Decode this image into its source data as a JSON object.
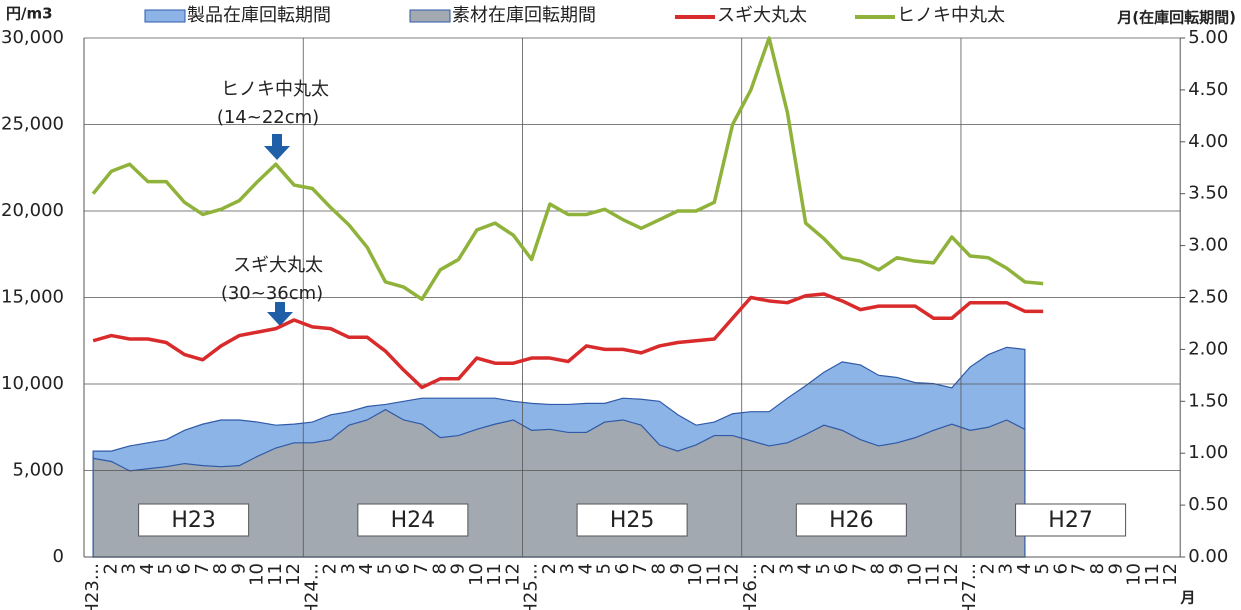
{
  "chart_data": {
    "type": "line",
    "y_label": "円/m3",
    "y2_label": "月(在庫回転期間)",
    "x_label": "月",
    "categories": [
      "H23...",
      "2",
      "3",
      "4",
      "5",
      "6",
      "7",
      "8",
      "9",
      "10",
      "11",
      "12",
      "H24...",
      "2",
      "3",
      "4",
      "5",
      "6",
      "7",
      "8",
      "9",
      "10",
      "11",
      "12",
      "H25...",
      "2",
      "3",
      "4",
      "5",
      "6",
      "7",
      "8",
      "9",
      "10",
      "11",
      "12",
      "H26...",
      "2",
      "3",
      "4",
      "5",
      "6",
      "7",
      "8",
      "9",
      "10",
      "11",
      "12",
      "H27...",
      "2",
      "3",
      "4",
      "5",
      "6",
      "7",
      "8",
      "9",
      "10",
      "11",
      "12"
    ],
    "series": [
      {
        "name": "製品在庫回転期間",
        "type": "area",
        "axis": "y2",
        "color": "#8db4e6",
        "values": [
          1.02,
          1.02,
          1.07,
          1.1,
          1.13,
          1.22,
          1.28,
          1.32,
          1.32,
          1.3,
          1.27,
          1.28,
          1.3,
          1.37,
          1.4,
          1.45,
          1.47,
          1.5,
          1.53,
          1.53,
          1.53,
          1.53,
          1.53,
          1.5,
          1.48,
          1.47,
          1.47,
          1.48,
          1.48,
          1.53,
          1.52,
          1.5,
          1.37,
          1.27,
          1.3,
          1.38,
          1.4,
          1.4,
          1.53,
          1.65,
          1.78,
          1.88,
          1.85,
          1.75,
          1.73,
          1.68,
          1.67,
          1.63,
          1.83,
          1.95,
          2.02,
          2.0,
          null,
          null,
          null,
          null,
          null,
          null,
          null,
          null
        ]
      },
      {
        "name": "素材在庫回転期間",
        "type": "area",
        "axis": "y2",
        "color": "#a2a9b1",
        "values": [
          0.95,
          0.92,
          0.83,
          0.85,
          0.87,
          0.9,
          0.88,
          0.87,
          0.88,
          0.97,
          1.05,
          1.1,
          1.1,
          1.13,
          1.27,
          1.32,
          1.42,
          1.32,
          1.28,
          1.15,
          1.17,
          1.23,
          1.28,
          1.32,
          1.22,
          1.23,
          1.2,
          1.2,
          1.3,
          1.32,
          1.27,
          1.08,
          1.02,
          1.08,
          1.17,
          1.17,
          1.12,
          1.07,
          1.1,
          1.18,
          1.27,
          1.22,
          1.13,
          1.07,
          1.1,
          1.15,
          1.22,
          1.28,
          1.22,
          1.25,
          1.32,
          1.23,
          null,
          null,
          null,
          null,
          null,
          null,
          null,
          null
        ]
      },
      {
        "name": "スギ大丸太",
        "type": "line",
        "color": "#d92b2b",
        "values": [
          12500,
          12800,
          12600,
          12600,
          12400,
          11700,
          11400,
          12200,
          12800,
          13000,
          13200,
          13700,
          13300,
          13200,
          12700,
          12700,
          11900,
          10800,
          9800,
          10300,
          10300,
          11500,
          11200,
          11200,
          11500,
          11500,
          11300,
          12200,
          12000,
          12000,
          11800,
          12200,
          12400,
          12500,
          12600,
          13800,
          15000,
          14800,
          14700,
          15100,
          15200,
          14800,
          14300,
          14500,
          14500,
          14500,
          13800,
          13800,
          14700,
          14700,
          14700,
          14200,
          14200,
          null,
          null,
          null,
          null,
          null,
          null,
          null
        ]
      },
      {
        "name": "ヒノキ中丸太",
        "type": "line",
        "color": "#8fb33a",
        "values": [
          21000,
          22300,
          22700,
          21700,
          21700,
          20500,
          19800,
          20100,
          20600,
          21700,
          22700,
          21500,
          21300,
          20200,
          19200,
          17900,
          15900,
          15600,
          14900,
          16600,
          17200,
          18900,
          19300,
          18600,
          17200,
          20400,
          19800,
          19800,
          20100,
          19500,
          19000,
          19500,
          20000,
          20000,
          20500,
          25000,
          27000,
          30000,
          25700,
          19300,
          18400,
          17300,
          17100,
          16600,
          17300,
          17100,
          17000,
          18500,
          17400,
          17300,
          16700,
          15900,
          15800,
          null,
          null,
          null,
          null,
          null,
          null,
          null
        ]
      }
    ],
    "ylim": [
      0,
      30000
    ],
    "yticks": [
      0,
      {
        "value": 5000,
        "label": "5,000"
      },
      {
        "value": 10000,
        "label": "10,000"
      },
      {
        "value": 15000,
        "label": "15,000"
      },
      {
        "value": 20000,
        "label": "20,000"
      },
      {
        "value": 25000,
        "label": "25,000"
      },
      {
        "value": 30000,
        "label": "30,000"
      }
    ],
    "y2lim": [
      0,
      5
    ],
    "y2ticks": [
      {
        "value": 0,
        "label": "0.00"
      },
      {
        "value": 0.5,
        "label": "0.50"
      },
      {
        "value": 1,
        "label": "1.00"
      },
      {
        "value": 1.5,
        "label": "1.50"
      },
      {
        "value": 2,
        "label": "2.00"
      },
      {
        "value": 2.5,
        "label": "2.50"
      },
      {
        "value": 3,
        "label": "3.00"
      },
      {
        "value": 3.5,
        "label": "3.50"
      },
      {
        "value": 4,
        "label": "4.00"
      },
      {
        "value": 4.5,
        "label": "4.50"
      },
      {
        "value": 5,
        "label": "5.00"
      }
    ],
    "grid": true,
    "legend": "top",
    "year_labels": [
      "H23",
      "H24",
      "H25",
      "H26",
      "H27"
    ],
    "annotations": [
      "ヒノキ中丸太",
      "(14~22cm)",
      "スギ大丸太",
      "(30~36cm)"
    ]
  }
}
